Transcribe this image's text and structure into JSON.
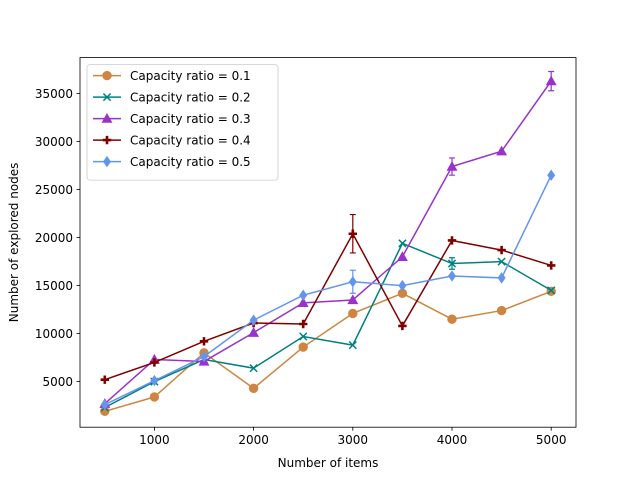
{
  "chart_data": {
    "type": "line",
    "title": "",
    "xlabel": "Number of items",
    "ylabel": "Number of explored nodes",
    "xlim": [
      250,
      5250
    ],
    "ylim": [
      250,
      38750
    ],
    "xticks": [
      1000,
      2000,
      3000,
      4000,
      5000
    ],
    "yticks": [
      5000,
      10000,
      15000,
      20000,
      25000,
      30000,
      35000
    ],
    "x": [
      500,
      1000,
      1500,
      2000,
      2500,
      3000,
      3500,
      4000,
      4500,
      5000
    ],
    "grid": false,
    "legend_position": "upper-left",
    "series": [
      {
        "name": "Capacity ratio = 0.1",
        "color": "#cd853f",
        "marker": "circle",
        "values": [
          1900,
          3400,
          8000,
          4300,
          8600,
          12100,
          14200,
          11500,
          12400,
          14400
        ],
        "errors": [
          0,
          0,
          0,
          0,
          0,
          0,
          0,
          0,
          0,
          0
        ]
      },
      {
        "name": "Capacity ratio = 0.2",
        "color": "#008080",
        "marker": "x",
        "values": [
          2300,
          5000,
          7300,
          6400,
          9700,
          8800,
          19400,
          17300,
          17500,
          14500
        ],
        "errors": [
          0,
          0,
          0,
          0,
          0,
          0,
          0,
          600,
          0,
          0
        ]
      },
      {
        "name": "Capacity ratio = 0.3",
        "color": "#9932cc",
        "marker": "triangle",
        "values": [
          2700,
          7300,
          7100,
          10100,
          13200,
          13500,
          18000,
          27400,
          29000,
          36300
        ],
        "errors": [
          0,
          0,
          0,
          0,
          0,
          0,
          0,
          900,
          0,
          1000
        ]
      },
      {
        "name": "Capacity ratio = 0.4",
        "color": "#800000",
        "marker": "plus",
        "values": [
          5200,
          7000,
          9200,
          11100,
          11000,
          20400,
          10800,
          19700,
          18700,
          17100
        ],
        "errors": [
          0,
          0,
          0,
          0,
          0,
          2000,
          0,
          0,
          0,
          0
        ]
      },
      {
        "name": "Capacity ratio = 0.5",
        "color": "#6495ed",
        "marker": "diamond",
        "values": [
          2600,
          5100,
          7600,
          11400,
          14000,
          15400,
          15000,
          16000,
          15800,
          26500
        ],
        "errors": [
          0,
          0,
          0,
          0,
          0,
          1200,
          0,
          0,
          0,
          0
        ]
      }
    ]
  }
}
